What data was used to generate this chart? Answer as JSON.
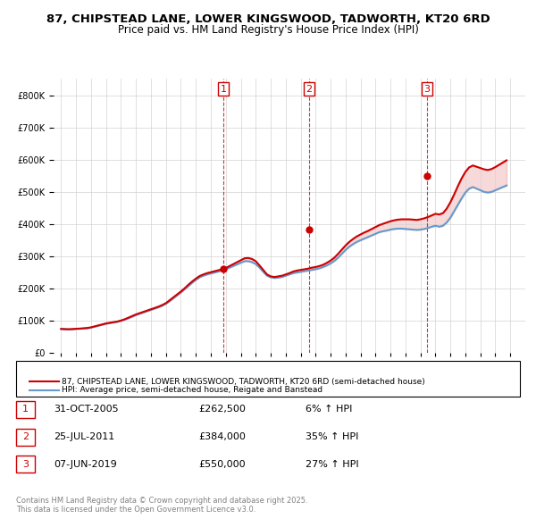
{
  "title_line1": "87, CHIPSTEAD LANE, LOWER KINGSWOOD, TADWORTH, KT20 6RD",
  "title_line2": "Price paid vs. HM Land Registry's House Price Index (HPI)",
  "legend_label1": "87, CHIPSTEAD LANE, LOWER KINGSWOOD, TADWORTH, KT20 6RD (semi-detached house)",
  "legend_label2": "HPI: Average price, semi-detached house, Reigate and Banstead",
  "footer": "Contains HM Land Registry data © Crown copyright and database right 2025.\nThis data is licensed under the Open Government Licence v3.0.",
  "sale_points": [
    {
      "num": 1,
      "date_label": "31-OCT-2005",
      "price": 262500,
      "hpi_pct": "6%",
      "x": 2005.83
    },
    {
      "num": 2,
      "date_label": "25-JUL-2011",
      "price": 384000,
      "hpi_pct": "35%",
      "x": 2011.56
    },
    {
      "num": 3,
      "date_label": "07-JUN-2019",
      "price": 550000,
      "hpi_pct": "27%",
      "x": 2019.44
    }
  ],
  "table_rows": [
    {
      "num": "1",
      "date": "31-OCT-2005",
      "price": "£262,500",
      "hpi": "6% ↑ HPI"
    },
    {
      "num": "2",
      "date": "25-JUL-2011",
      "price": "£384,000",
      "hpi": "35% ↑ HPI"
    },
    {
      "num": "3",
      "date": "07-JUN-2019",
      "price": "£550,000",
      "hpi": "27% ↑ HPI"
    }
  ],
  "price_color": "#cc0000",
  "hpi_color": "#6699cc",
  "vline_color": "#cc0000",
  "ylim": [
    0,
    850000
  ],
  "yticks": [
    0,
    100000,
    200000,
    300000,
    400000,
    500000,
    600000,
    700000,
    800000
  ],
  "xlim": [
    1994.5,
    2026
  ],
  "xticks": [
    1995,
    1996,
    1997,
    1998,
    1999,
    2000,
    2001,
    2002,
    2003,
    2004,
    2005,
    2006,
    2007,
    2008,
    2009,
    2010,
    2011,
    2012,
    2013,
    2014,
    2015,
    2016,
    2017,
    2018,
    2019,
    2020,
    2021,
    2022,
    2023,
    2024,
    2025
  ],
  "hpi_data": {
    "years": [
      1995,
      1995.25,
      1995.5,
      1995.75,
      1996,
      1996.25,
      1996.5,
      1996.75,
      1997,
      1997.25,
      1997.5,
      1997.75,
      1998,
      1998.25,
      1998.5,
      1998.75,
      1999,
      1999.25,
      1999.5,
      1999.75,
      2000,
      2000.25,
      2000.5,
      2000.75,
      2001,
      2001.25,
      2001.5,
      2001.75,
      2002,
      2002.25,
      2002.5,
      2002.75,
      2003,
      2003.25,
      2003.5,
      2003.75,
      2004,
      2004.25,
      2004.5,
      2004.75,
      2005,
      2005.25,
      2005.5,
      2005.75,
      2006,
      2006.25,
      2006.5,
      2006.75,
      2007,
      2007.25,
      2007.5,
      2007.75,
      2008,
      2008.25,
      2008.5,
      2008.75,
      2009,
      2009.25,
      2009.5,
      2009.75,
      2010,
      2010.25,
      2010.5,
      2010.75,
      2011,
      2011.25,
      2011.5,
      2011.75,
      2012,
      2012.25,
      2012.5,
      2012.75,
      2013,
      2013.25,
      2013.5,
      2013.75,
      2014,
      2014.25,
      2014.5,
      2014.75,
      2015,
      2015.25,
      2015.5,
      2015.75,
      2016,
      2016.25,
      2016.5,
      2016.75,
      2017,
      2017.25,
      2017.5,
      2017.75,
      2018,
      2018.25,
      2018.5,
      2018.75,
      2019,
      2019.25,
      2019.5,
      2019.75,
      2020,
      2020.25,
      2020.5,
      2020.75,
      2021,
      2021.25,
      2021.5,
      2021.75,
      2022,
      2022.25,
      2022.5,
      2022.75,
      2023,
      2023.25,
      2023.5,
      2023.75,
      2024,
      2024.25,
      2024.5,
      2024.75
    ],
    "values": [
      75000,
      74000,
      73500,
      74000,
      75000,
      75500,
      76000,
      77000,
      79000,
      82000,
      85000,
      88000,
      91000,
      93000,
      95000,
      97000,
      100000,
      104000,
      108000,
      113000,
      118000,
      122000,
      126000,
      130000,
      134000,
      138000,
      142000,
      147000,
      153000,
      161000,
      170000,
      179000,
      188000,
      198000,
      208000,
      218000,
      227000,
      235000,
      240000,
      244000,
      247000,
      250000,
      253000,
      256000,
      260000,
      265000,
      270000,
      275000,
      280000,
      285000,
      285000,
      282000,
      276000,
      265000,
      252000,
      240000,
      235000,
      233000,
      234000,
      236000,
      240000,
      244000,
      248000,
      250000,
      252000,
      254000,
      256000,
      258000,
      260000,
      263000,
      267000,
      272000,
      278000,
      286000,
      296000,
      308000,
      320000,
      330000,
      338000,
      345000,
      350000,
      355000,
      360000,
      365000,
      370000,
      375000,
      378000,
      380000,
      383000,
      385000,
      386000,
      386000,
      385000,
      384000,
      383000,
      382000,
      383000,
      385000,
      388000,
      392000,
      395000,
      392000,
      395000,
      405000,
      420000,
      440000,
      460000,
      480000,
      498000,
      510000,
      515000,
      510000,
      505000,
      500000,
      498000,
      500000,
      505000,
      510000,
      515000,
      520000
    ]
  },
  "price_data": {
    "years": [
      1995,
      1995.25,
      1995.5,
      1995.75,
      1996,
      1996.25,
      1996.5,
      1996.75,
      1997,
      1997.25,
      1997.5,
      1997.75,
      1998,
      1998.25,
      1998.5,
      1998.75,
      1999,
      1999.25,
      1999.5,
      1999.75,
      2000,
      2000.25,
      2000.5,
      2000.75,
      2001,
      2001.25,
      2001.5,
      2001.75,
      2002,
      2002.25,
      2002.5,
      2002.75,
      2003,
      2003.25,
      2003.5,
      2003.75,
      2004,
      2004.25,
      2004.5,
      2004.75,
      2005,
      2005.25,
      2005.5,
      2005.75,
      2006,
      2006.25,
      2006.5,
      2006.75,
      2007,
      2007.25,
      2007.5,
      2007.75,
      2008,
      2008.25,
      2008.5,
      2008.75,
      2009,
      2009.25,
      2009.5,
      2009.75,
      2010,
      2010.25,
      2010.5,
      2010.75,
      2011,
      2011.25,
      2011.5,
      2011.75,
      2012,
      2012.25,
      2012.5,
      2012.75,
      2013,
      2013.25,
      2013.5,
      2013.75,
      2014,
      2014.25,
      2014.5,
      2014.75,
      2015,
      2015.25,
      2015.5,
      2015.75,
      2016,
      2016.25,
      2016.5,
      2016.75,
      2017,
      2017.25,
      2017.5,
      2017.75,
      2018,
      2018.25,
      2018.5,
      2018.75,
      2019,
      2019.25,
      2019.5,
      2019.75,
      2020,
      2020.25,
      2020.5,
      2020.75,
      2021,
      2021.25,
      2021.5,
      2021.75,
      2022,
      2022.25,
      2022.5,
      2022.75,
      2023,
      2023.25,
      2023.5,
      2023.75,
      2024,
      2024.25,
      2024.5,
      2024.75
    ],
    "values": [
      75000,
      74500,
      74000,
      74500,
      75500,
      76000,
      77000,
      78000,
      80000,
      83000,
      86000,
      89000,
      92000,
      94000,
      96000,
      98000,
      101000,
      105000,
      110000,
      115000,
      120000,
      124000,
      128000,
      132000,
      136000,
      140000,
      144000,
      149000,
      155000,
      164000,
      173000,
      182000,
      191000,
      201000,
      212000,
      222000,
      231000,
      239000,
      244000,
      248000,
      251000,
      254000,
      257000,
      260000,
      264000,
      270000,
      276000,
      282000,
      288000,
      294000,
      295000,
      292000,
      285000,
      272000,
      258000,
      244000,
      238000,
      236000,
      238000,
      240000,
      244000,
      248000,
      253000,
      256000,
      258000,
      260000,
      262000,
      265000,
      267000,
      270000,
      274000,
      280000,
      287000,
      296000,
      308000,
      321000,
      334000,
      345000,
      354000,
      362000,
      368000,
      374000,
      379000,
      385000,
      391000,
      397000,
      401000,
      405000,
      409000,
      412000,
      414000,
      415000,
      415000,
      415000,
      414000,
      413000,
      415000,
      418000,
      422000,
      427000,
      432000,
      430000,
      434000,
      448000,
      468000,
      492000,
      518000,
      542000,
      562000,
      576000,
      582000,
      578000,
      574000,
      570000,
      568000,
      571000,
      577000,
      584000,
      591000,
      598000
    ]
  }
}
